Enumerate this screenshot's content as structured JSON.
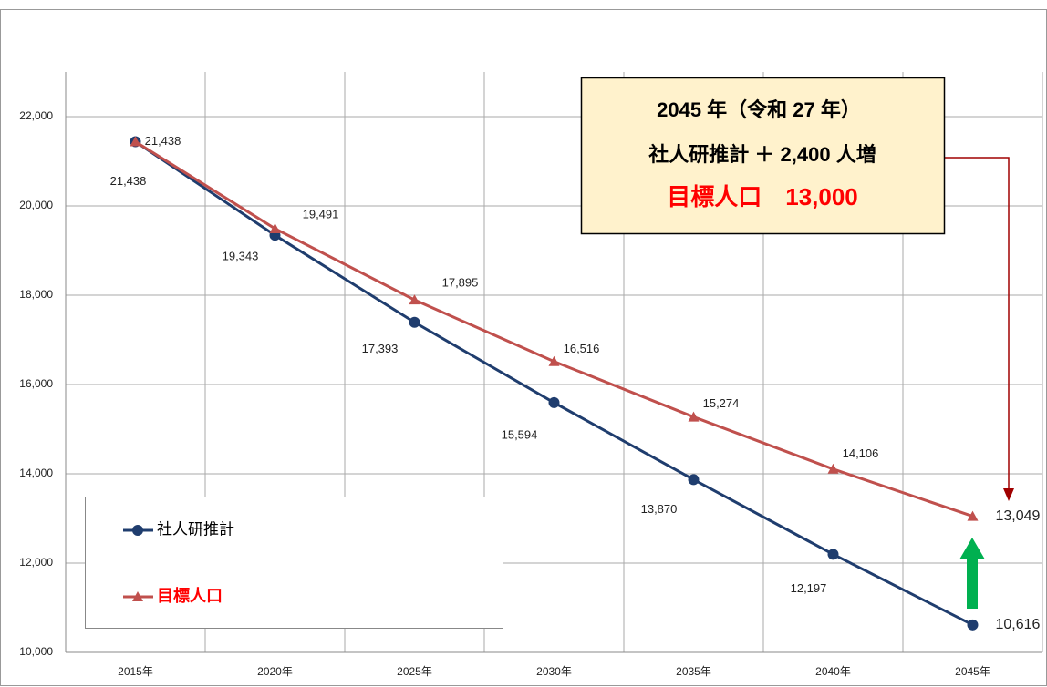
{
  "chart_data": {
    "type": "line",
    "categories": [
      "2015年",
      "2020年",
      "2025年",
      "2030年",
      "2035年",
      "2040年",
      "2045年"
    ],
    "series": [
      {
        "name": "社人研推計",
        "color": "#1f3d6e",
        "marker": "circle",
        "values": [
          21438,
          19343,
          17393,
          15594,
          13870,
          12197,
          10616
        ],
        "value_labels": [
          "21,438",
          "19,343",
          "17,393",
          "15,594",
          "13,870",
          "12,197",
          "10,616"
        ]
      },
      {
        "name": "目標人口",
        "color": "#c0504d",
        "marker": "triangle",
        "values": [
          21438,
          19491,
          17895,
          16516,
          15274,
          14106,
          13049
        ],
        "value_labels": [
          "21,438",
          "19,491",
          "17,895",
          "16,516",
          "15,274",
          "14,106",
          "13,049"
        ]
      }
    ],
    "ylim": [
      10000,
      23000
    ],
    "yticks": [
      {
        "value": 10000,
        "label": "10,000"
      },
      {
        "value": 12000,
        "label": "12,000"
      },
      {
        "value": 14000,
        "label": "14,000"
      },
      {
        "value": 16000,
        "label": "16,000"
      },
      {
        "value": 18000,
        "label": "18,000"
      },
      {
        "value": 20000,
        "label": "20,000"
      },
      {
        "value": 22000,
        "label": "22,000"
      }
    ],
    "grid": true,
    "annotations": [
      "2045 年（令和 27 年）",
      "社人研推計 ＋ 2,400 人増",
      "目標人口　13,000"
    ]
  }
}
